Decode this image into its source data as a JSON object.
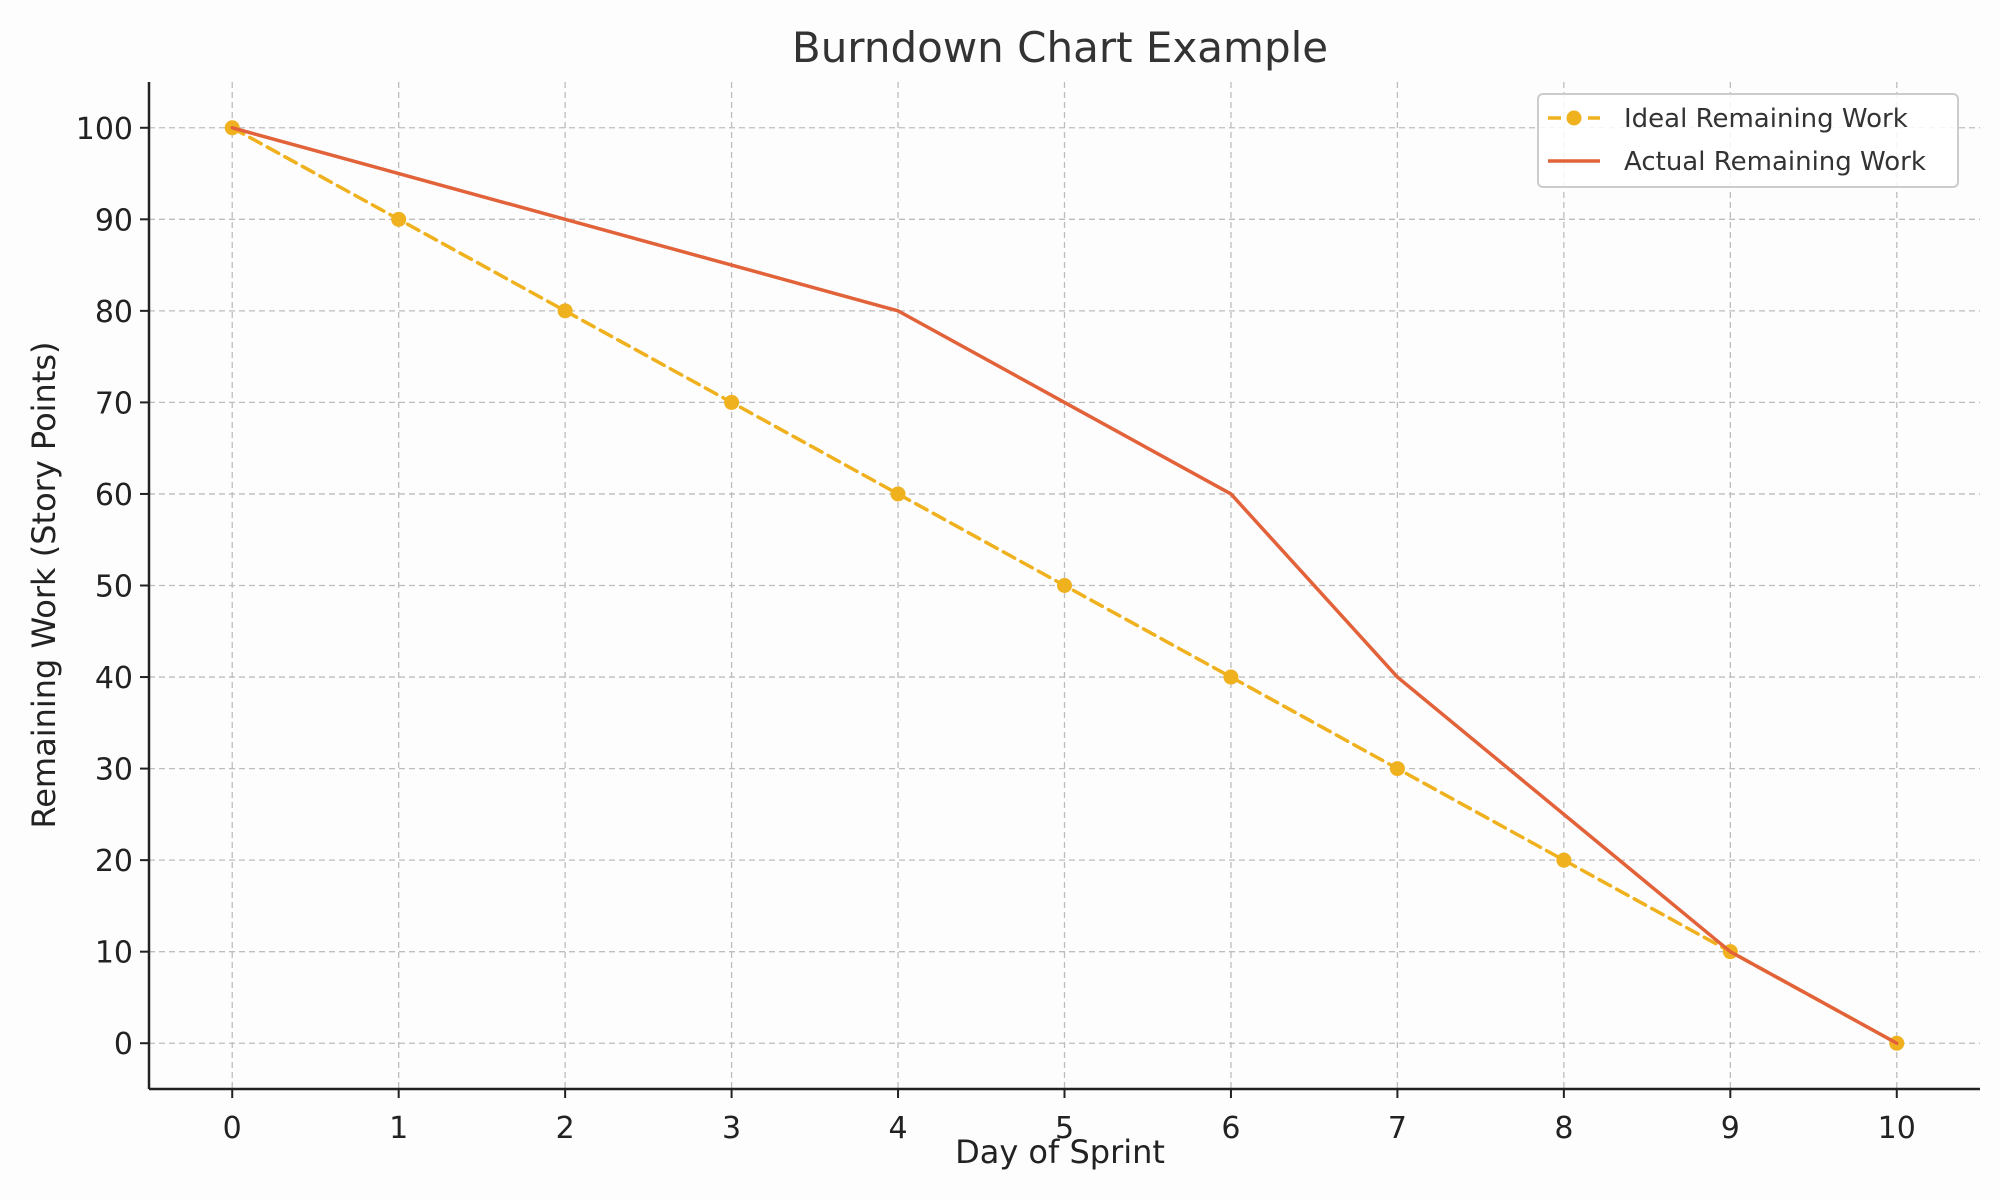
{
  "chart_data": {
    "type": "line",
    "title": "Burndown Chart Example",
    "xlabel": "Day of Sprint",
    "ylabel": "Remaining Work (Story Points)",
    "x": [
      0,
      1,
      2,
      3,
      4,
      5,
      6,
      7,
      8,
      9,
      10
    ],
    "xlim": [
      -0.5,
      10.5
    ],
    "ylim": [
      -5,
      105
    ],
    "xticks": [
      0,
      1,
      2,
      3,
      4,
      5,
      6,
      7,
      8,
      9,
      10
    ],
    "yticks": [
      0,
      10,
      20,
      30,
      40,
      50,
      60,
      70,
      80,
      90,
      100
    ],
    "grid": true,
    "legend_position": "top-right",
    "series": [
      {
        "name": "Ideal Remaining Work",
        "values": [
          100,
          90,
          80,
          70,
          60,
          50,
          40,
          30,
          20,
          10,
          0
        ],
        "color": "#F0B11E",
        "line_style": "dashed",
        "markers": true
      },
      {
        "name": "Actual Remaining Work",
        "values": [
          100,
          95,
          90,
          85,
          80,
          70,
          60,
          40,
          25,
          10,
          0
        ],
        "color": "#E2623A",
        "line_style": "solid",
        "markers": false
      }
    ]
  }
}
